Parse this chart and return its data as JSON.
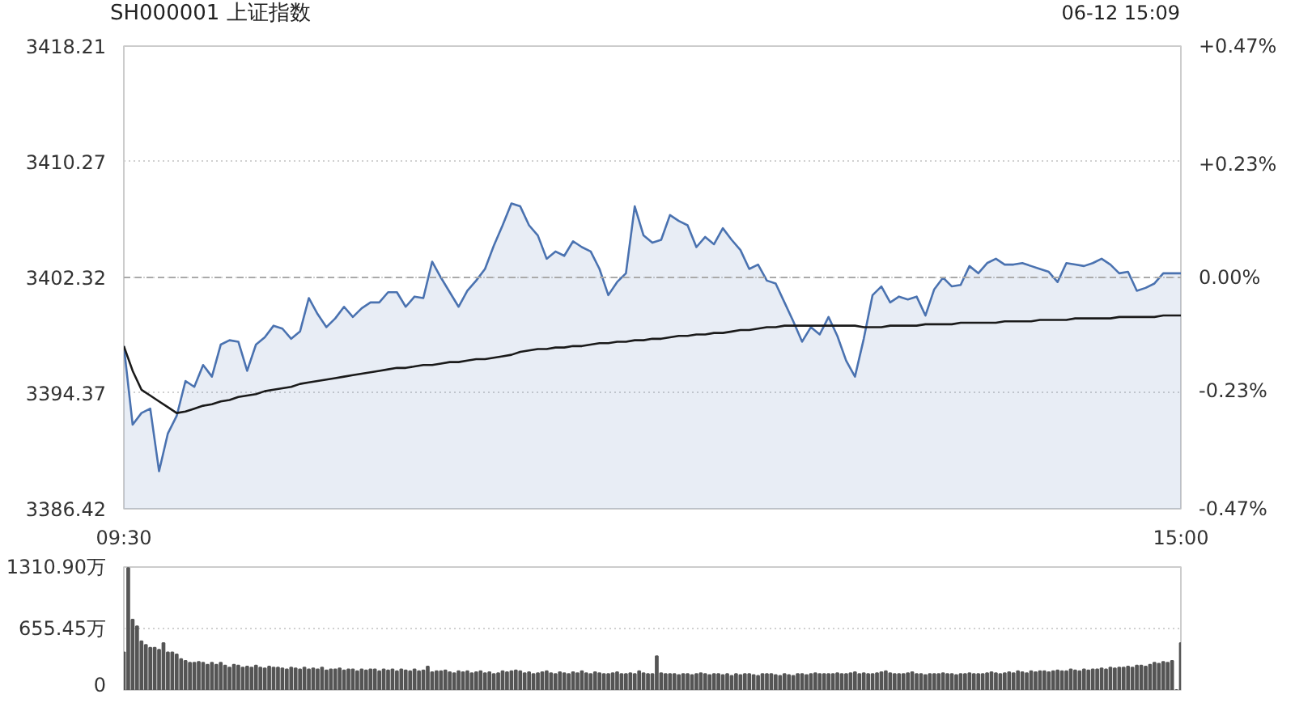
{
  "chart_data": [
    {
      "type": "line",
      "title": "SH000001 上证指数",
      "annotations": [
        "06-12 15:09"
      ],
      "categories": [
        "09:30",
        null,
        null,
        null,
        null,
        null,
        null,
        null,
        null,
        null,
        null,
        null,
        null,
        null,
        null,
        null,
        null,
        null,
        null,
        null,
        null,
        null,
        null,
        null,
        null,
        null,
        null,
        null,
        null,
        null,
        null,
        null,
        null,
        null,
        null,
        null,
        null,
        null,
        null,
        null,
        null,
        null,
        null,
        null,
        null,
        null,
        null,
        null,
        null,
        null,
        null,
        null,
        null,
        null,
        null,
        null,
        null,
        null,
        null,
        null,
        null,
        null,
        null,
        null,
        null,
        null,
        null,
        null,
        null,
        null,
        null,
        null,
        null,
        null,
        null,
        null,
        null,
        null,
        null,
        null,
        null,
        null,
        null,
        null,
        null,
        null,
        null,
        null,
        null,
        null,
        null,
        null,
        null,
        null,
        null,
        null,
        null,
        null,
        null,
        null,
        null,
        null,
        null,
        null,
        null,
        null,
        null,
        null,
        null,
        null,
        null,
        null,
        null,
        null,
        null,
        null,
        null,
        null,
        null,
        null,
        "15:00"
      ],
      "ylim": [
        3386.42,
        3418.21
      ],
      "yticks": [
        3386.42,
        3394.37,
        3402.32,
        3410.27,
        3418.21
      ],
      "y2lim": [
        -0.47,
        0.47
      ],
      "y2ticks": [
        {
          "value": -0.47,
          "label": "-0.47%"
        },
        {
          "value": -0.23,
          "label": "-0.23%"
        },
        {
          "value": 0,
          "label": "0.00%"
        },
        {
          "value": 0.23,
          "label": "+0.23%"
        },
        {
          "value": 0.47,
          "label": "+0.47%"
        }
      ],
      "ref_lines": [
        {
          "axis": "y",
          "value": 3402.32,
          "line_style": "dashed",
          "color": "#aaaaaa"
        }
      ],
      "grid": "y",
      "marker": "none",
      "line_style": "solid",
      "series": [
        {
          "type": "area",
          "color": "#4a72b0",
          "values": [
            3397.6,
            3392.2,
            3393.0,
            3393.3,
            3389.0,
            3391.6,
            3392.8,
            3395.2,
            3394.8,
            3396.3,
            3395.5,
            3397.7,
            3398.0,
            3397.9,
            3395.9,
            3397.7,
            3398.2,
            3399.0,
            3398.8,
            3398.1,
            3398.6,
            3400.9,
            3399.8,
            3398.9,
            3399.5,
            3400.3,
            3399.6,
            3400.2,
            3400.6,
            3400.6,
            3401.3,
            3401.3,
            3400.3,
            3401.0,
            3400.9,
            3403.4,
            3402.3,
            3401.3,
            3400.3,
            3401.4,
            3402.1,
            3402.9,
            3404.5,
            3405.9,
            3407.4,
            3407.2,
            3405.9,
            3405.2,
            3403.6,
            3404.1,
            3403.8,
            3404.8,
            3404.4,
            3404.1,
            3402.9,
            3401.1,
            3402.0,
            3402.6,
            3407.2,
            3405.2,
            3404.7,
            3404.9,
            3406.6,
            3406.2,
            3405.9,
            3404.4,
            3405.1,
            3404.6,
            3405.7,
            3404.9,
            3404.2,
            3402.9,
            3403.2,
            3402.1,
            3401.9,
            3400.6,
            3399.3,
            3397.9,
            3398.9,
            3398.4,
            3399.6,
            3398.3,
            3396.6,
            3395.5,
            3398.1,
            3401.1,
            3401.7,
            3400.6,
            3401.0,
            3400.8,
            3401.0,
            3399.7,
            3401.5,
            3402.3,
            3401.7,
            3401.8,
            3403.1,
            3402.6,
            3403.3,
            3403.6,
            3403.2,
            3403.2,
            3403.3,
            3403.1,
            3402.9,
            3402.7,
            3402.0,
            3403.3,
            3403.2,
            3403.1,
            3403.3,
            3403.6,
            3403.2,
            3402.6,
            3402.7,
            3401.4,
            3401.6,
            3401.9,
            3402.6,
            3402.6,
            3402.6
          ]
        },
        {
          "type": "line",
          "color": "#1a1a1a",
          "values": [
            3397.6,
            3395.9,
            3394.6,
            3394.2,
            3393.8,
            3393.4,
            3393.0,
            3393.1,
            3393.3,
            3393.5,
            3393.6,
            3393.8,
            3393.9,
            3394.1,
            3394.2,
            3394.3,
            3394.5,
            3394.6,
            3394.7,
            3394.8,
            3395.0,
            3395.1,
            3395.2,
            3395.3,
            3395.4,
            3395.5,
            3395.6,
            3395.7,
            3395.8,
            3395.9,
            3396.0,
            3396.1,
            3396.1,
            3396.2,
            3396.3,
            3396.3,
            3396.4,
            3396.5,
            3396.5,
            3396.6,
            3396.7,
            3396.7,
            3396.8,
            3396.9,
            3397.0,
            3397.2,
            3397.3,
            3397.4,
            3397.4,
            3397.5,
            3397.5,
            3397.6,
            3397.6,
            3397.7,
            3397.8,
            3397.8,
            3397.9,
            3397.9,
            3398.0,
            3398.0,
            3398.1,
            3398.1,
            3398.2,
            3398.3,
            3398.3,
            3398.4,
            3398.4,
            3398.5,
            3398.5,
            3398.6,
            3398.7,
            3398.7,
            3398.8,
            3398.9,
            3398.9,
            3399.0,
            3399.0,
            3399.0,
            3399.0,
            3399.0,
            3399.0,
            3399.0,
            3399.0,
            3399.0,
            3398.9,
            3398.9,
            3398.9,
            3399.0,
            3399.0,
            3399.0,
            3399.0,
            3399.1,
            3399.1,
            3399.1,
            3399.1,
            3399.2,
            3399.2,
            3399.2,
            3399.2,
            3399.2,
            3399.3,
            3399.3,
            3399.3,
            3399.3,
            3399.4,
            3399.4,
            3399.4,
            3399.4,
            3399.5,
            3399.5,
            3399.5,
            3399.5,
            3399.5,
            3399.6,
            3399.6,
            3399.6,
            3399.6,
            3399.6,
            3399.7,
            3399.7,
            3399.7
          ]
        }
      ]
    },
    {
      "type": "bar",
      "ylim": [
        0,
        1310.9
      ],
      "yticks": [
        0,
        {
          "value": 655.45,
          "label": "655.45万"
        },
        {
          "value": 1310.9,
          "label": "1310.90万"
        }
      ],
      "tick_labels": "y",
      "grid": "y",
      "color": "#555555",
      "categories": [
        null,
        null,
        null,
        null,
        null,
        null,
        null,
        null,
        null,
        null,
        null,
        null,
        null,
        null,
        null,
        null,
        null,
        null,
        null,
        null,
        null,
        null,
        null,
        null,
        null,
        null,
        null,
        null,
        null,
        null,
        null,
        null,
        null,
        null,
        null,
        null,
        null,
        null,
        null,
        null,
        null,
        null,
        null,
        null,
        null,
        null,
        null,
        null,
        null,
        null,
        null,
        null,
        null,
        null,
        null,
        null,
        null,
        null,
        null,
        null,
        null,
        null,
        null,
        null,
        null,
        null,
        null,
        null,
        null,
        null,
        null,
        null,
        null,
        null,
        null,
        null,
        null,
        null,
        null,
        null,
        null,
        null,
        null,
        null,
        null,
        null,
        null,
        null,
        null,
        null,
        null,
        null,
        null,
        null,
        null,
        null,
        null,
        null,
        null,
        null,
        null,
        null,
        null,
        null,
        null,
        null,
        null,
        null,
        null,
        null,
        null,
        null,
        null,
        null,
        null,
        null,
        null,
        null,
        null,
        null,
        null,
        null,
        null,
        null,
        null,
        null,
        null,
        null,
        null,
        null,
        null,
        null,
        null,
        null,
        null,
        null,
        null,
        null,
        null,
        null,
        null,
        null,
        null,
        null,
        null,
        null,
        null,
        null,
        null,
        null,
        null,
        null,
        null,
        null,
        null,
        null,
        null,
        null,
        null,
        null,
        null,
        null,
        null,
        null,
        null,
        null,
        null,
        null,
        null,
        null,
        null,
        null,
        null,
        null,
        null,
        null,
        null,
        null,
        null,
        null,
        null,
        null,
        null,
        null,
        null,
        null,
        null,
        null,
        null,
        null,
        null,
        null,
        null,
        null,
        null,
        null,
        null,
        null,
        null,
        null,
        null,
        null,
        null,
        null,
        null,
        null,
        null,
        null,
        null,
        null,
        null,
        null,
        null,
        null,
        null,
        null,
        null,
        null,
        null,
        null,
        null,
        null,
        null,
        null,
        null,
        null,
        null,
        null,
        null,
        null,
        null,
        null,
        null,
        null,
        null,
        null,
        null,
        null,
        null,
        null,
        null
      ],
      "values": [
        400,
        1300,
        750,
        680,
        520,
        480,
        450,
        450,
        430,
        500,
        400,
        400,
        380,
        330,
        310,
        290,
        290,
        300,
        290,
        270,
        290,
        270,
        290,
        260,
        240,
        270,
        260,
        240,
        250,
        240,
        260,
        240,
        230,
        250,
        240,
        240,
        230,
        220,
        240,
        230,
        220,
        240,
        220,
        230,
        220,
        240,
        210,
        220,
        220,
        230,
        210,
        220,
        220,
        200,
        220,
        210,
        220,
        220,
        200,
        220,
        210,
        220,
        200,
        220,
        210,
        200,
        220,
        200,
        210,
        250,
        190,
        200,
        200,
        210,
        190,
        180,
        200,
        190,
        200,
        180,
        190,
        200,
        180,
        190,
        170,
        180,
        200,
        190,
        200,
        210,
        200,
        180,
        190,
        170,
        180,
        190,
        200,
        180,
        170,
        190,
        180,
        170,
        190,
        180,
        200,
        180,
        170,
        190,
        180,
        170,
        170,
        180,
        190,
        170,
        170,
        180,
        170,
        200,
        180,
        170,
        170,
        360,
        180,
        170,
        170,
        170,
        160,
        170,
        170,
        160,
        170,
        180,
        170,
        160,
        170,
        170,
        160,
        170,
        150,
        170,
        160,
        170,
        170,
        160,
        150,
        170,
        170,
        170,
        160,
        150,
        170,
        160,
        150,
        170,
        170,
        160,
        170,
        180,
        170,
        170,
        170,
        170,
        180,
        170,
        170,
        180,
        190,
        170,
        180,
        170,
        170,
        180,
        190,
        200,
        180,
        170,
        170,
        170,
        180,
        190,
        170,
        170,
        160,
        170,
        170,
        170,
        180,
        170,
        170,
        160,
        170,
        170,
        180,
        170,
        170,
        170,
        180,
        190,
        180,
        170,
        180,
        190,
        180,
        200,
        190,
        180,
        200,
        190,
        200,
        200,
        190,
        200,
        210,
        200,
        200,
        220,
        210,
        200,
        220,
        210,
        220,
        220,
        230,
        220,
        240,
        230,
        240,
        240,
        250,
        240,
        260,
        260,
        250,
        270,
        290,
        280,
        300,
        290,
        310,
        0,
        500
      ]
    }
  ]
}
